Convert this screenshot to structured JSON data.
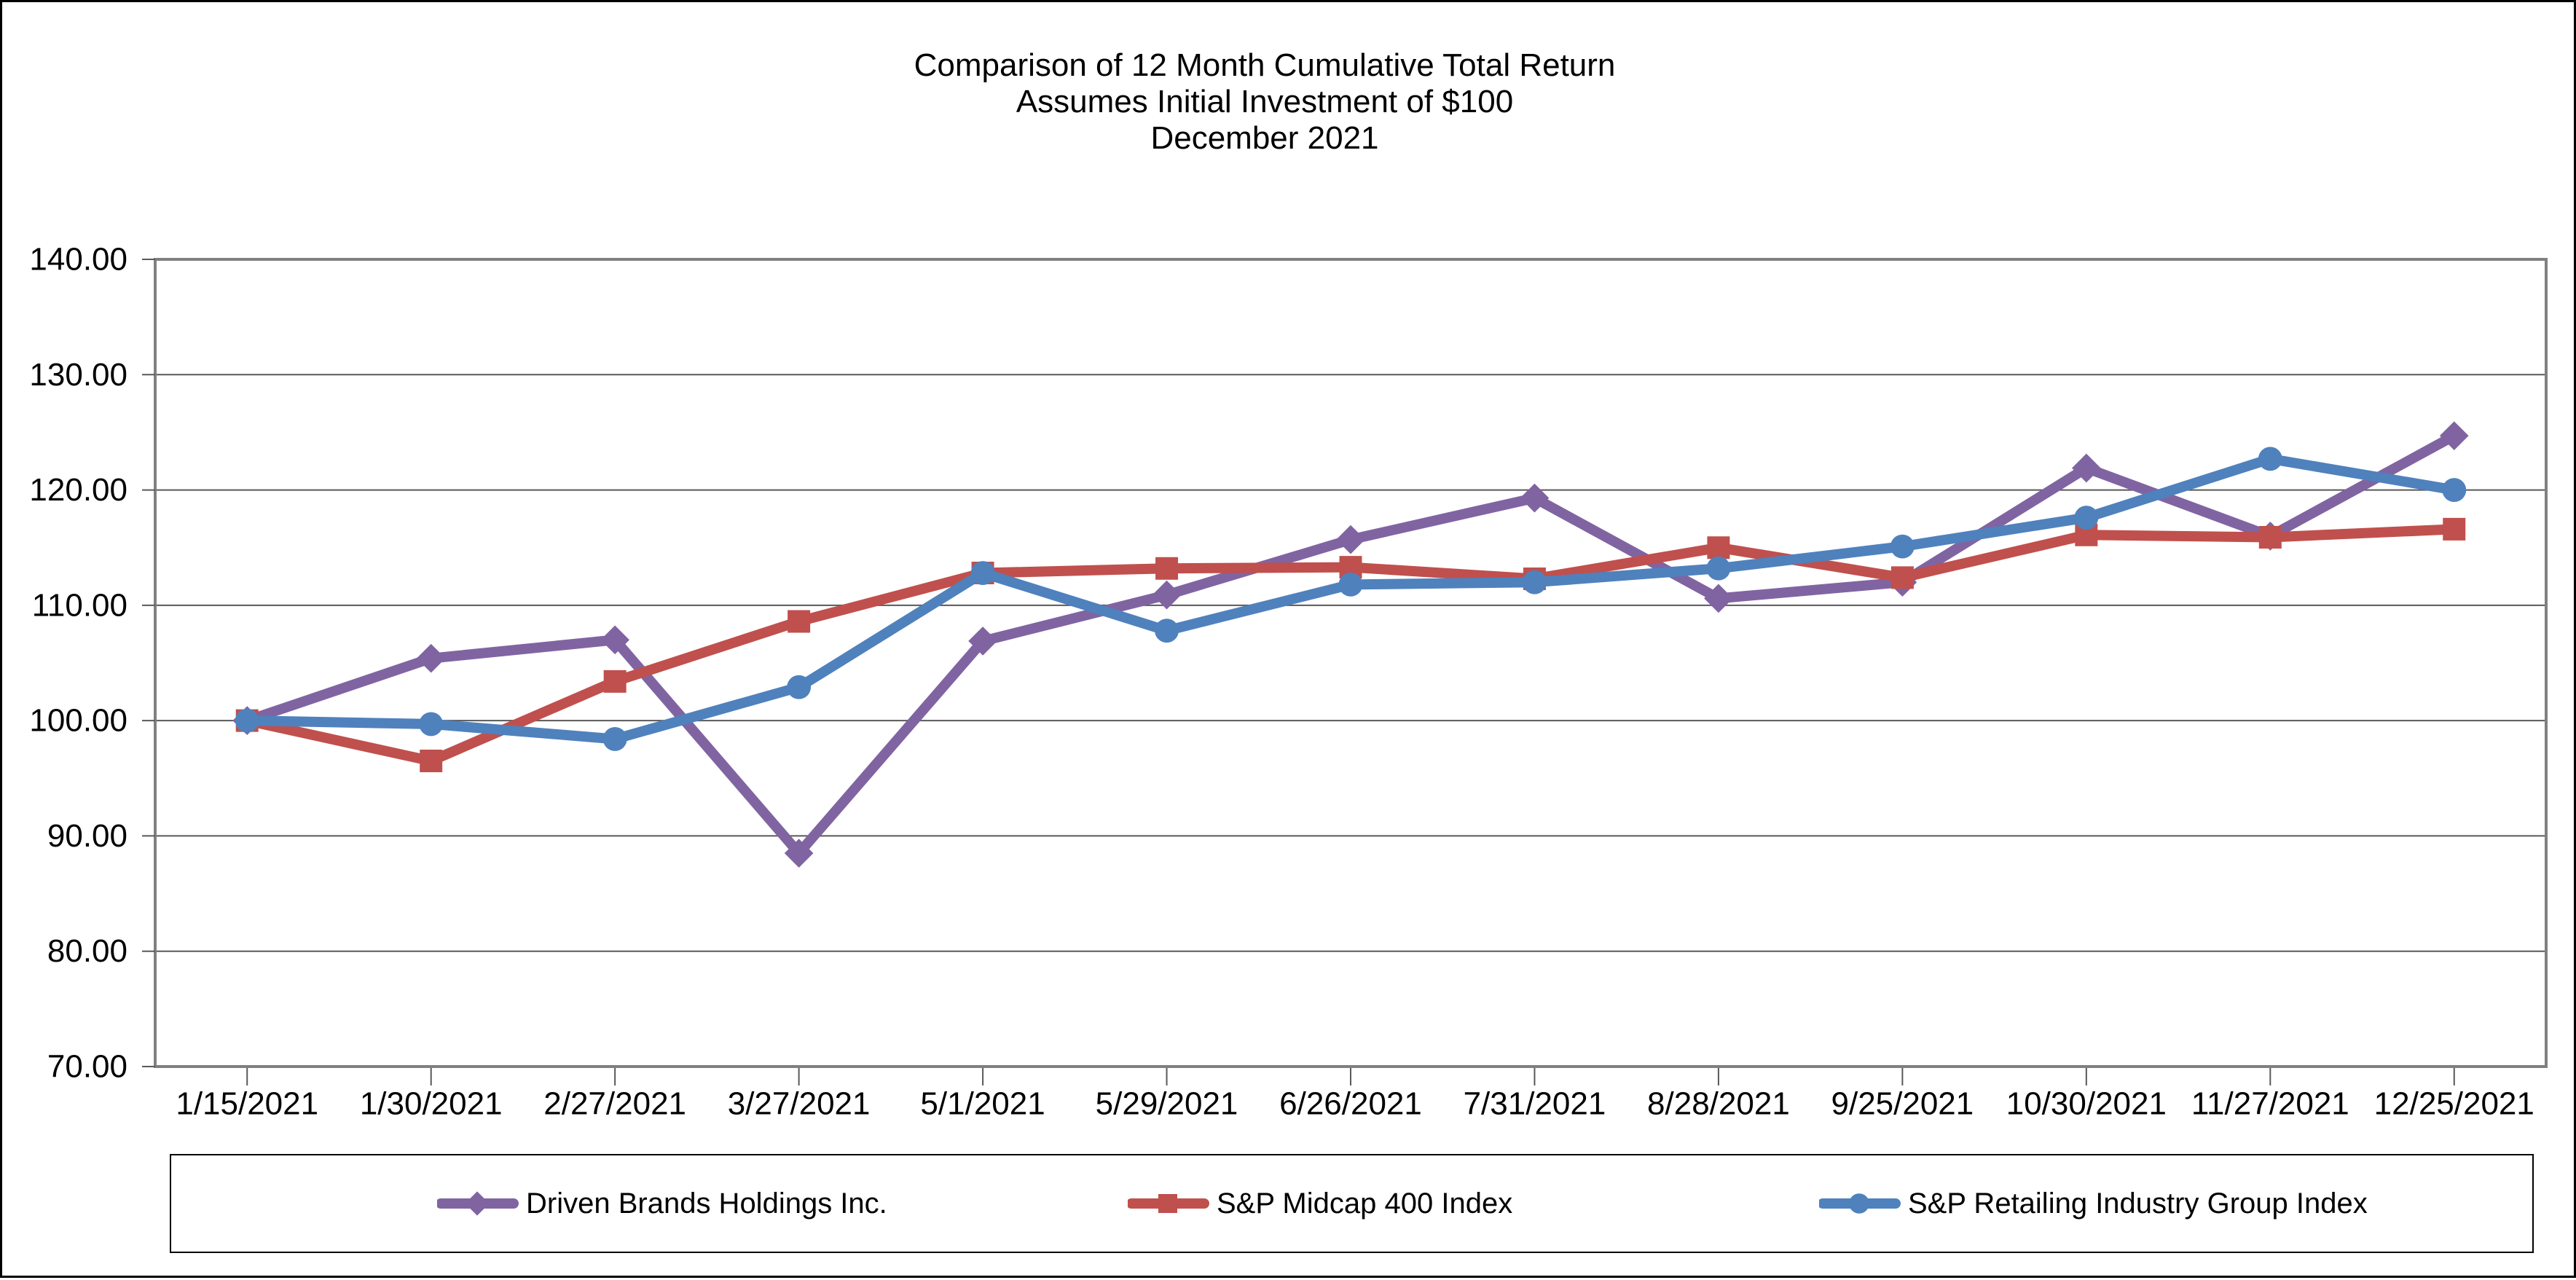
{
  "title": {
    "line1": "Comparison of 12 Month Cumulative Total Return",
    "line2": "Assumes Initial Investment of $100",
    "line3": "December 2021"
  },
  "chart_data": {
    "type": "line",
    "title": "Comparison of 12 Month Cumulative Total Return Assumes Initial Investment of $100 December 2021",
    "categories": [
      "1/15/2021",
      "1/30/2021",
      "2/27/2021",
      "3/27/2021",
      "5/1/2021",
      "5/29/2021",
      "6/26/2021",
      "7/31/2021",
      "8/28/2021",
      "9/25/2021",
      "10/30/2021",
      "11/27/2021",
      "12/25/2021"
    ],
    "series": [
      {
        "name": "Driven Brands Holdings Inc.",
        "color": "#8064A2",
        "marker": "diamond",
        "values": [
          100.0,
          105.4,
          107.0,
          88.5,
          106.9,
          110.9,
          115.7,
          119.3,
          110.6,
          112.0,
          121.9,
          116.0,
          124.7
        ]
      },
      {
        "name": "S&P Midcap 400 Index",
        "color": "#C0504D",
        "marker": "square",
        "values": [
          100.0,
          96.5,
          103.4,
          108.6,
          112.8,
          113.2,
          113.3,
          112.3,
          115.0,
          112.4,
          116.1,
          115.9,
          116.6
        ]
      },
      {
        "name": "S&P Retailing Industry Group Index",
        "color": "#4F81BD",
        "marker": "circle",
        "values": [
          100.0,
          99.7,
          98.4,
          102.9,
          112.8,
          107.8,
          111.8,
          112.0,
          113.2,
          115.1,
          117.6,
          122.7,
          120.0
        ]
      }
    ],
    "ylim": [
      70,
      140
    ],
    "y_tick_labels": [
      "140.00",
      "130.00",
      "120.00",
      "110.00",
      "100.00",
      "90.00",
      "80.00",
      "70.00"
    ],
    "grid": true,
    "legend_position": "bottom",
    "colors": {
      "grid": "#595959",
      "plot_border": "#808080",
      "tick": "#595959",
      "text": "#000000",
      "legend_border": "#000000",
      "background": "#ffffff"
    }
  }
}
